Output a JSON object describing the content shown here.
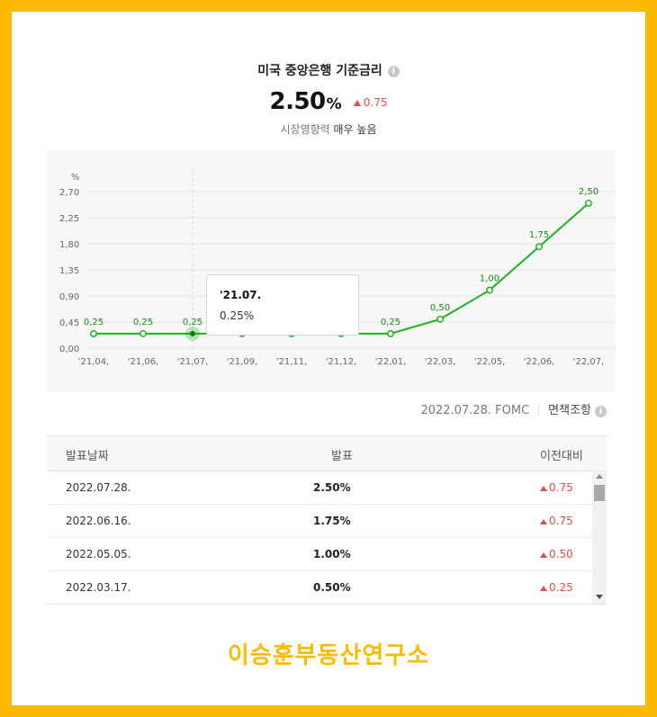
{
  "header": {
    "title": "미국 중앙은행 기준금리",
    "info_icon": "info-icon",
    "rate": "2.50",
    "rate_unit": "%",
    "change": "0.75",
    "change_color": "#e84a4a",
    "subtitle_prefix": "시장영향력",
    "subtitle_level": "매우 높음"
  },
  "chart_data": {
    "type": "line",
    "y_unit_label": "%",
    "y_ticks": [
      "0,00",
      "0,45",
      "0,90",
      "1,35",
      "1,80",
      "2,25",
      "2,70"
    ],
    "ylim": [
      0,
      2.9
    ],
    "categories": [
      "'21,04,",
      "'21,06,",
      "'21,07,",
      "'21,09,",
      "'21,11,",
      "'21,12,",
      "'22,01,",
      "'22,03,",
      "'22,05,",
      "'22,06,",
      "'22,07,"
    ],
    "values": [
      0.25,
      0.25,
      0.25,
      0.25,
      0.25,
      0.25,
      0.25,
      0.5,
      1.0,
      1.75,
      2.5
    ],
    "data_labels": [
      "0,25",
      "0,25",
      "0,25",
      "",
      "",
      "",
      "0,25",
      "0,50",
      "1,00",
      "1,75",
      "2,50"
    ],
    "highlight_index": 2,
    "line_color": "#1db31d",
    "grid": true
  },
  "tooltip": {
    "date": "'21.07.",
    "value": "0.25%"
  },
  "source": {
    "label": "2022.07.28. FOMC",
    "disclaimer": "면책조항"
  },
  "table": {
    "headers": [
      "발표날짜",
      "발표",
      "이전대비"
    ],
    "rows": [
      {
        "date": "2022.07.28.",
        "value": "2.50%",
        "change": "0.75"
      },
      {
        "date": "2022.06.16.",
        "value": "1.75%",
        "change": "0.75"
      },
      {
        "date": "2022.05.05.",
        "value": "1.00%",
        "change": "0.50"
      },
      {
        "date": "2022.03.17.",
        "value": "0.50%",
        "change": "0.25"
      }
    ]
  },
  "brand": {
    "text": "이승훈부동산연구소",
    "color": "#fcbb03"
  }
}
